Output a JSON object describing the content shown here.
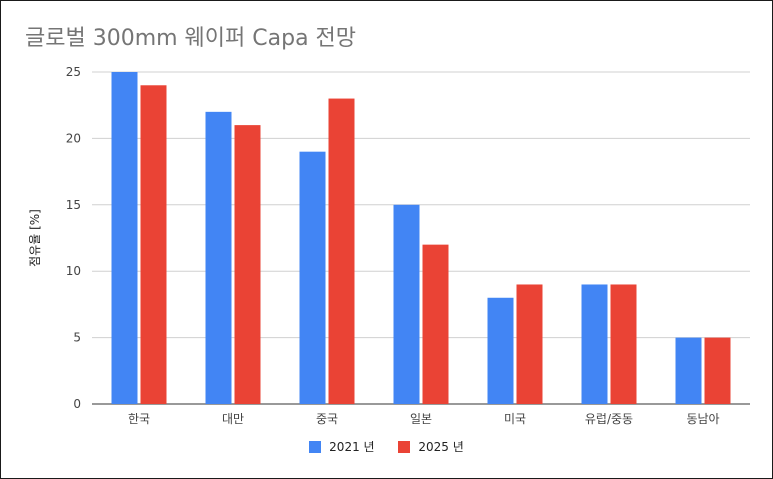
{
  "chart_data": {
    "type": "bar",
    "title": "글로벌 300mm 웨이퍼 Capa 전망",
    "xlabel": "",
    "ylabel": "점유율 [%]",
    "categories": [
      "한국",
      "대만",
      "중국",
      "일본",
      "미국",
      "유럽/중동",
      "동남아"
    ],
    "series": [
      {
        "name": "2021 년",
        "values": [
          25,
          22,
          19,
          15,
          8,
          9,
          5
        ],
        "color": "#4285f4"
      },
      {
        "name": "2025 년",
        "values": [
          24,
          21,
          23,
          12,
          9,
          9,
          5
        ],
        "color": "#ea4335"
      }
    ],
    "ylim": [
      0,
      25
    ],
    "yticks": [
      0,
      5,
      10,
      15,
      20,
      25
    ],
    "grid": true,
    "legend_position": "bottom"
  }
}
